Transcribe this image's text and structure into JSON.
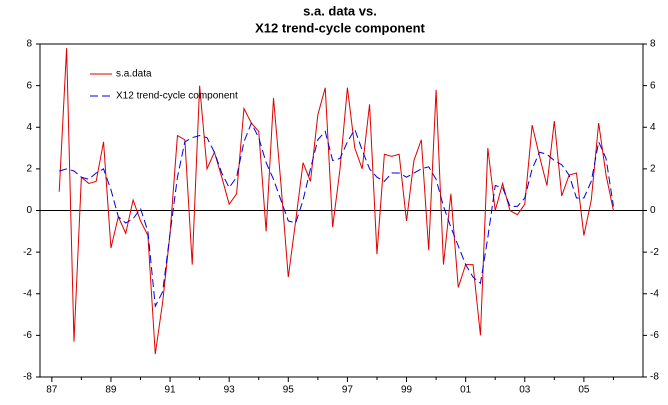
{
  "chart_data": {
    "type": "line",
    "title": [
      "s.a. data vs.",
      "X12 trend-cycle component"
    ],
    "x": [
      1987.25,
      1987.5,
      1987.75,
      1988,
      1988.25,
      1988.5,
      1988.75,
      1989,
      1989.25,
      1989.5,
      1989.75,
      1990,
      1990.25,
      1990.5,
      1990.75,
      1991,
      1991.25,
      1991.5,
      1991.75,
      1992,
      1992.25,
      1992.5,
      1992.75,
      1993,
      1993.25,
      1993.5,
      1993.75,
      1994,
      1994.25,
      1994.5,
      1994.75,
      1995,
      1995.25,
      1995.5,
      1995.75,
      1996,
      1996.25,
      1996.5,
      1996.75,
      1997,
      1997.25,
      1997.5,
      1997.75,
      1998,
      1998.25,
      1998.5,
      1998.75,
      1999,
      1999.25,
      1999.5,
      1999.75,
      2000,
      2000.25,
      2000.5,
      2000.75,
      2001,
      2001.25,
      2001.5,
      2001.75,
      2002,
      2002.25,
      2002.5,
      2002.75,
      2003,
      2003.25,
      2003.5,
      2003.75,
      2004,
      2004.25,
      2004.5,
      2004.75,
      2005,
      2005.25,
      2005.5,
      2005.75,
      2006
    ],
    "series": [
      {
        "name": "s.a.data",
        "color": "#e00000",
        "dash": false,
        "values": [
          0.9,
          7.8,
          -6.3,
          1.6,
          1.3,
          1.4,
          3.3,
          -1.8,
          -0.3,
          -1.1,
          0.5,
          -0.5,
          -1.2,
          -6.9,
          -4.4,
          -1.1,
          3.6,
          3.4,
          -2.6,
          6.0,
          2.0,
          2.8,
          1.6,
          0.3,
          0.8,
          4.9,
          4.2,
          3.8,
          -1.0,
          5.4,
          1.3,
          -3.2,
          -0.5,
          2.3,
          1.4,
          4.6,
          5.9,
          -0.8,
          2.0,
          5.9,
          3.0,
          2.0,
          5.1,
          -2.1,
          2.7,
          2.6,
          2.7,
          -0.5,
          2.4,
          3.4,
          -1.9,
          5.8,
          -2.6,
          0.8,
          -3.7,
          -2.6,
          -2.6,
          -6.0,
          3.0,
          0.0,
          1.3,
          0.0,
          -0.2,
          0.3,
          4.1,
          2.6,
          1.2,
          4.3,
          0.7,
          1.7,
          1.8,
          -1.2,
          0.5,
          4.2,
          1.7,
          0.0
        ]
      },
      {
        "name": "X12 trend-cycle component",
        "color": "#0000e0",
        "dash": true,
        "values": [
          1.9,
          2.0,
          1.9,
          1.6,
          1.5,
          1.8,
          2.0,
          1.0,
          -0.3,
          -0.6,
          -0.4,
          0.1,
          -1.0,
          -4.6,
          -3.9,
          -1.1,
          1.6,
          3.3,
          3.5,
          3.6,
          3.5,
          2.8,
          1.8,
          1.1,
          1.6,
          3.3,
          4.2,
          3.5,
          2.3,
          1.5,
          0.5,
          -0.5,
          -0.6,
          0.5,
          2.0,
          3.4,
          3.8,
          2.4,
          2.5,
          3.3,
          3.9,
          2.9,
          2.0,
          1.6,
          1.4,
          1.8,
          1.8,
          1.6,
          1.8,
          2.0,
          2.1,
          1.5,
          0.2,
          -0.8,
          -1.7,
          -2.6,
          -3.2,
          -3.5,
          -1.3,
          1.2,
          1.1,
          0.2,
          0.2,
          0.6,
          2.0,
          2.8,
          2.7,
          2.4,
          2.2,
          1.7,
          0.6,
          0.6,
          1.4,
          3.3,
          2.5,
          0.2
        ]
      }
    ],
    "xlim": [
      1986.6,
      2007.0
    ],
    "xticks": [
      {
        "value": 1987,
        "label": "87"
      },
      {
        "value": 1989,
        "label": "89"
      },
      {
        "value": 1991,
        "label": "91"
      },
      {
        "value": 1993,
        "label": "93"
      },
      {
        "value": 1995,
        "label": "95"
      },
      {
        "value": 1997,
        "label": "97"
      },
      {
        "value": 1999,
        "label": "99"
      },
      {
        "value": 2001,
        "label": "01"
      },
      {
        "value": 2003,
        "label": "03"
      },
      {
        "value": 2005,
        "label": "05"
      }
    ],
    "xticks_minor": [
      1988,
      1990,
      1992,
      1994,
      1996,
      1998,
      2000,
      2002,
      2004,
      2006
    ],
    "ylim": [
      -8,
      8
    ],
    "yticks": [
      -8,
      -6,
      -4,
      -2,
      0,
      2,
      4,
      6,
      8
    ],
    "y2lim": [
      -8,
      8
    ],
    "y2ticks": [
      -8,
      -6,
      -4,
      -2,
      0,
      2,
      4,
      6,
      8
    ],
    "zero_line": 0,
    "legend": "upper left"
  }
}
